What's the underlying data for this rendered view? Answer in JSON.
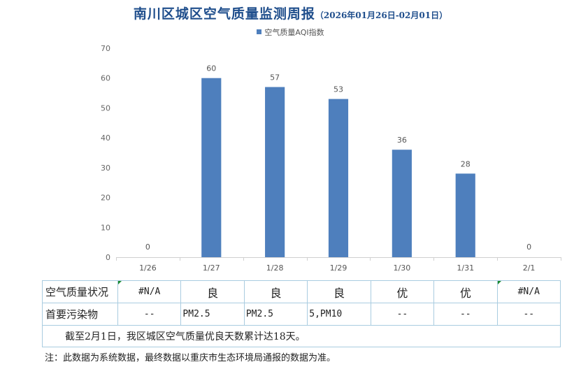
{
  "header": {
    "title": "南川区城区空气质量监测周报",
    "subtitle": "（2026年01月26日-02月01日）"
  },
  "chart_data": {
    "type": "bar",
    "title": "南川区城区空气质量监测周报",
    "categories": [
      "1/26",
      "1/27",
      "1/28",
      "1/29",
      "1/30",
      "1/31",
      "2/1"
    ],
    "series": [
      {
        "name": "空气质量AQI指数",
        "values": [
          0,
          60,
          57,
          53,
          36,
          28,
          0
        ],
        "color": "#4e7fbd"
      }
    ],
    "data_labels": [
      "0",
      "60",
      "57",
      "53",
      "36",
      "28",
      "0"
    ],
    "yticks": [
      0,
      10,
      20,
      30,
      40,
      50,
      60,
      70
    ],
    "ylim": [
      0,
      70
    ],
    "xlabel": "",
    "ylabel": "",
    "grid": false,
    "legend_position": "top-center"
  },
  "table": {
    "row_labels": {
      "quality": "空气质量状况",
      "pollutant": "首要污染物"
    },
    "quality": [
      "#N/A",
      "良",
      "良",
      "良",
      "优",
      "优",
      "#N/A"
    ],
    "pollutant": [
      "--",
      "PM2.5",
      "PM2.5",
      "5,PM10",
      "--",
      "--",
      "--"
    ],
    "summary": "截至2月1日，我区城区空气质量优良天数累计达18天。"
  },
  "footnote": "注：此数据为系统数据，最终数据以重庆市生态环境局通报的数据为准。",
  "colors": {
    "bar": "#4e7fbd",
    "title": "#1f4e8c",
    "table_border": "#a9cce0",
    "error_marker": "#1a8a2e"
  }
}
